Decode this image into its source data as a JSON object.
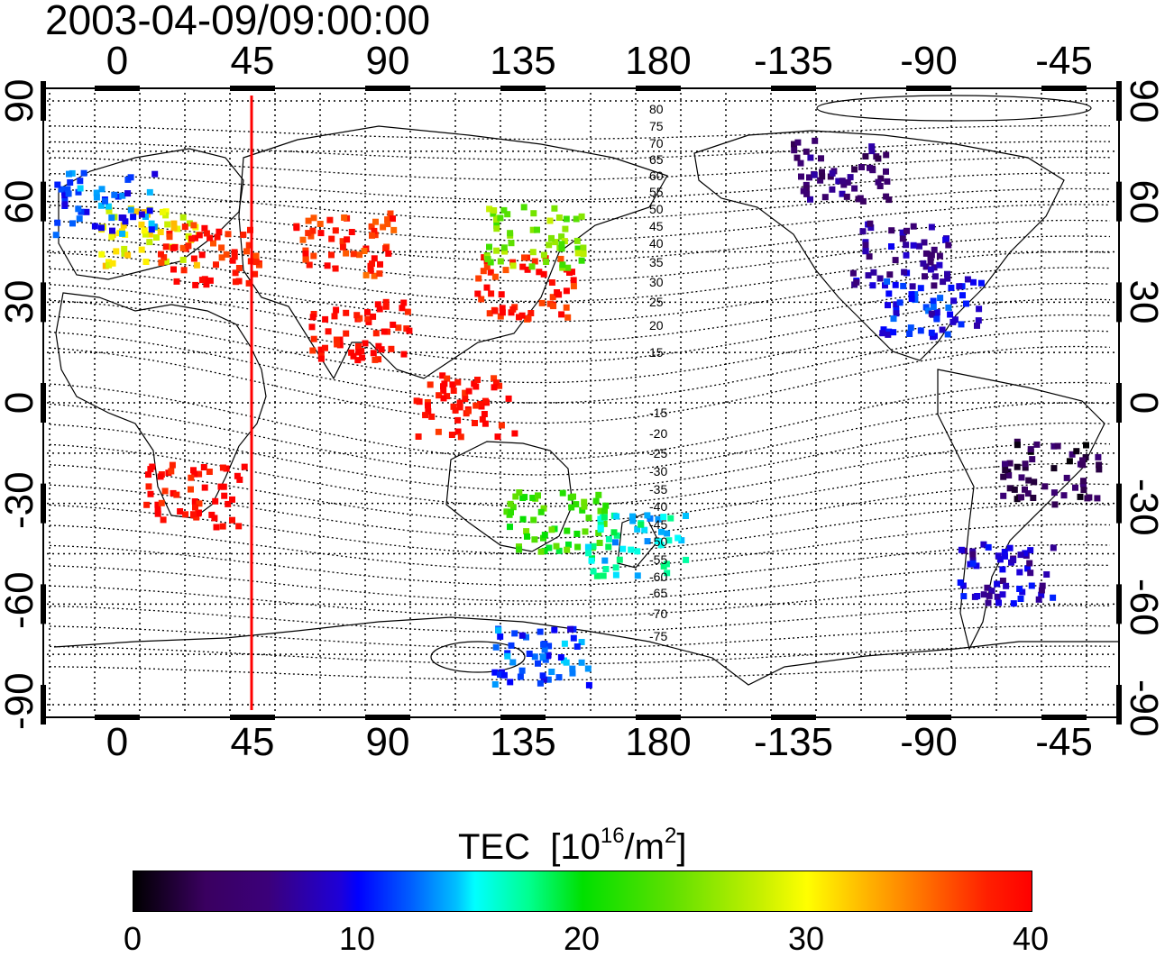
{
  "title": "2003-04-09/09:00:00",
  "axes": {
    "top_ticks": [
      "0",
      "45",
      "90",
      "135",
      "180",
      "-135",
      "-90",
      "-45"
    ],
    "bottom_ticks": [
      "0",
      "45",
      "90",
      "135",
      "180",
      "-135",
      "-90",
      "-45"
    ],
    "left_ticks": [
      "90",
      "60",
      "30",
      "0",
      "-30",
      "-60",
      "-90"
    ],
    "right_ticks": [
      "90",
      "60",
      "30",
      "0",
      "-30",
      "-60",
      "-90"
    ]
  },
  "contour_labels": [
    "80",
    "75",
    "70",
    "65",
    "60",
    "55",
    "50",
    "45",
    "40",
    "35",
    "30",
    "25",
    "20",
    "15",
    "-15",
    "-20",
    "-25",
    "-30",
    "-35",
    "-40",
    "-45",
    "-50",
    "-55",
    "-60",
    "-65",
    "-70",
    "-75"
  ],
  "colorbar": {
    "title": "TEC",
    "unit_prefix": "[10",
    "unit_exp": "16",
    "unit_mid": "/m",
    "unit_exp2": "2",
    "unit_suffix": "]",
    "ticks": [
      "0",
      "10",
      "20",
      "30",
      "40"
    ],
    "range": [
      0,
      40
    ]
  },
  "colors": {
    "marker_line": "#ff0000",
    "grid": "#000000"
  },
  "marker_longitude": 45,
  "tec_clusters": [
    {
      "lon": 10,
      "lat": 50,
      "tec": 30
    },
    {
      "lon": 30,
      "lat": 45,
      "tec": 39
    },
    {
      "lon": -5,
      "lat": 60,
      "tec": 12
    },
    {
      "lon": 75,
      "lat": 48,
      "tec": 38
    },
    {
      "lon": 80,
      "lat": 22,
      "tec": 40
    },
    {
      "lon": 135,
      "lat": 35,
      "tec": 39
    },
    {
      "lon": 138,
      "lat": 50,
      "tec": 25
    },
    {
      "lon": 115,
      "lat": 0,
      "tec": 40
    },
    {
      "lon": 25,
      "lat": -27,
      "tec": 40
    },
    {
      "lon": 145,
      "lat": -35,
      "tec": 22
    },
    {
      "lon": 172,
      "lat": -42,
      "tec": 16
    },
    {
      "lon": -100,
      "lat": 45,
      "tec": 7
    },
    {
      "lon": -90,
      "lat": 30,
      "tec": 10
    },
    {
      "lon": -120,
      "lat": 70,
      "tec": 5
    },
    {
      "lon": -50,
      "lat": -20,
      "tec": 3
    },
    {
      "lon": -65,
      "lat": -50,
      "tec": 8
    },
    {
      "lon": 140,
      "lat": -75,
      "tec": 12
    }
  ]
}
